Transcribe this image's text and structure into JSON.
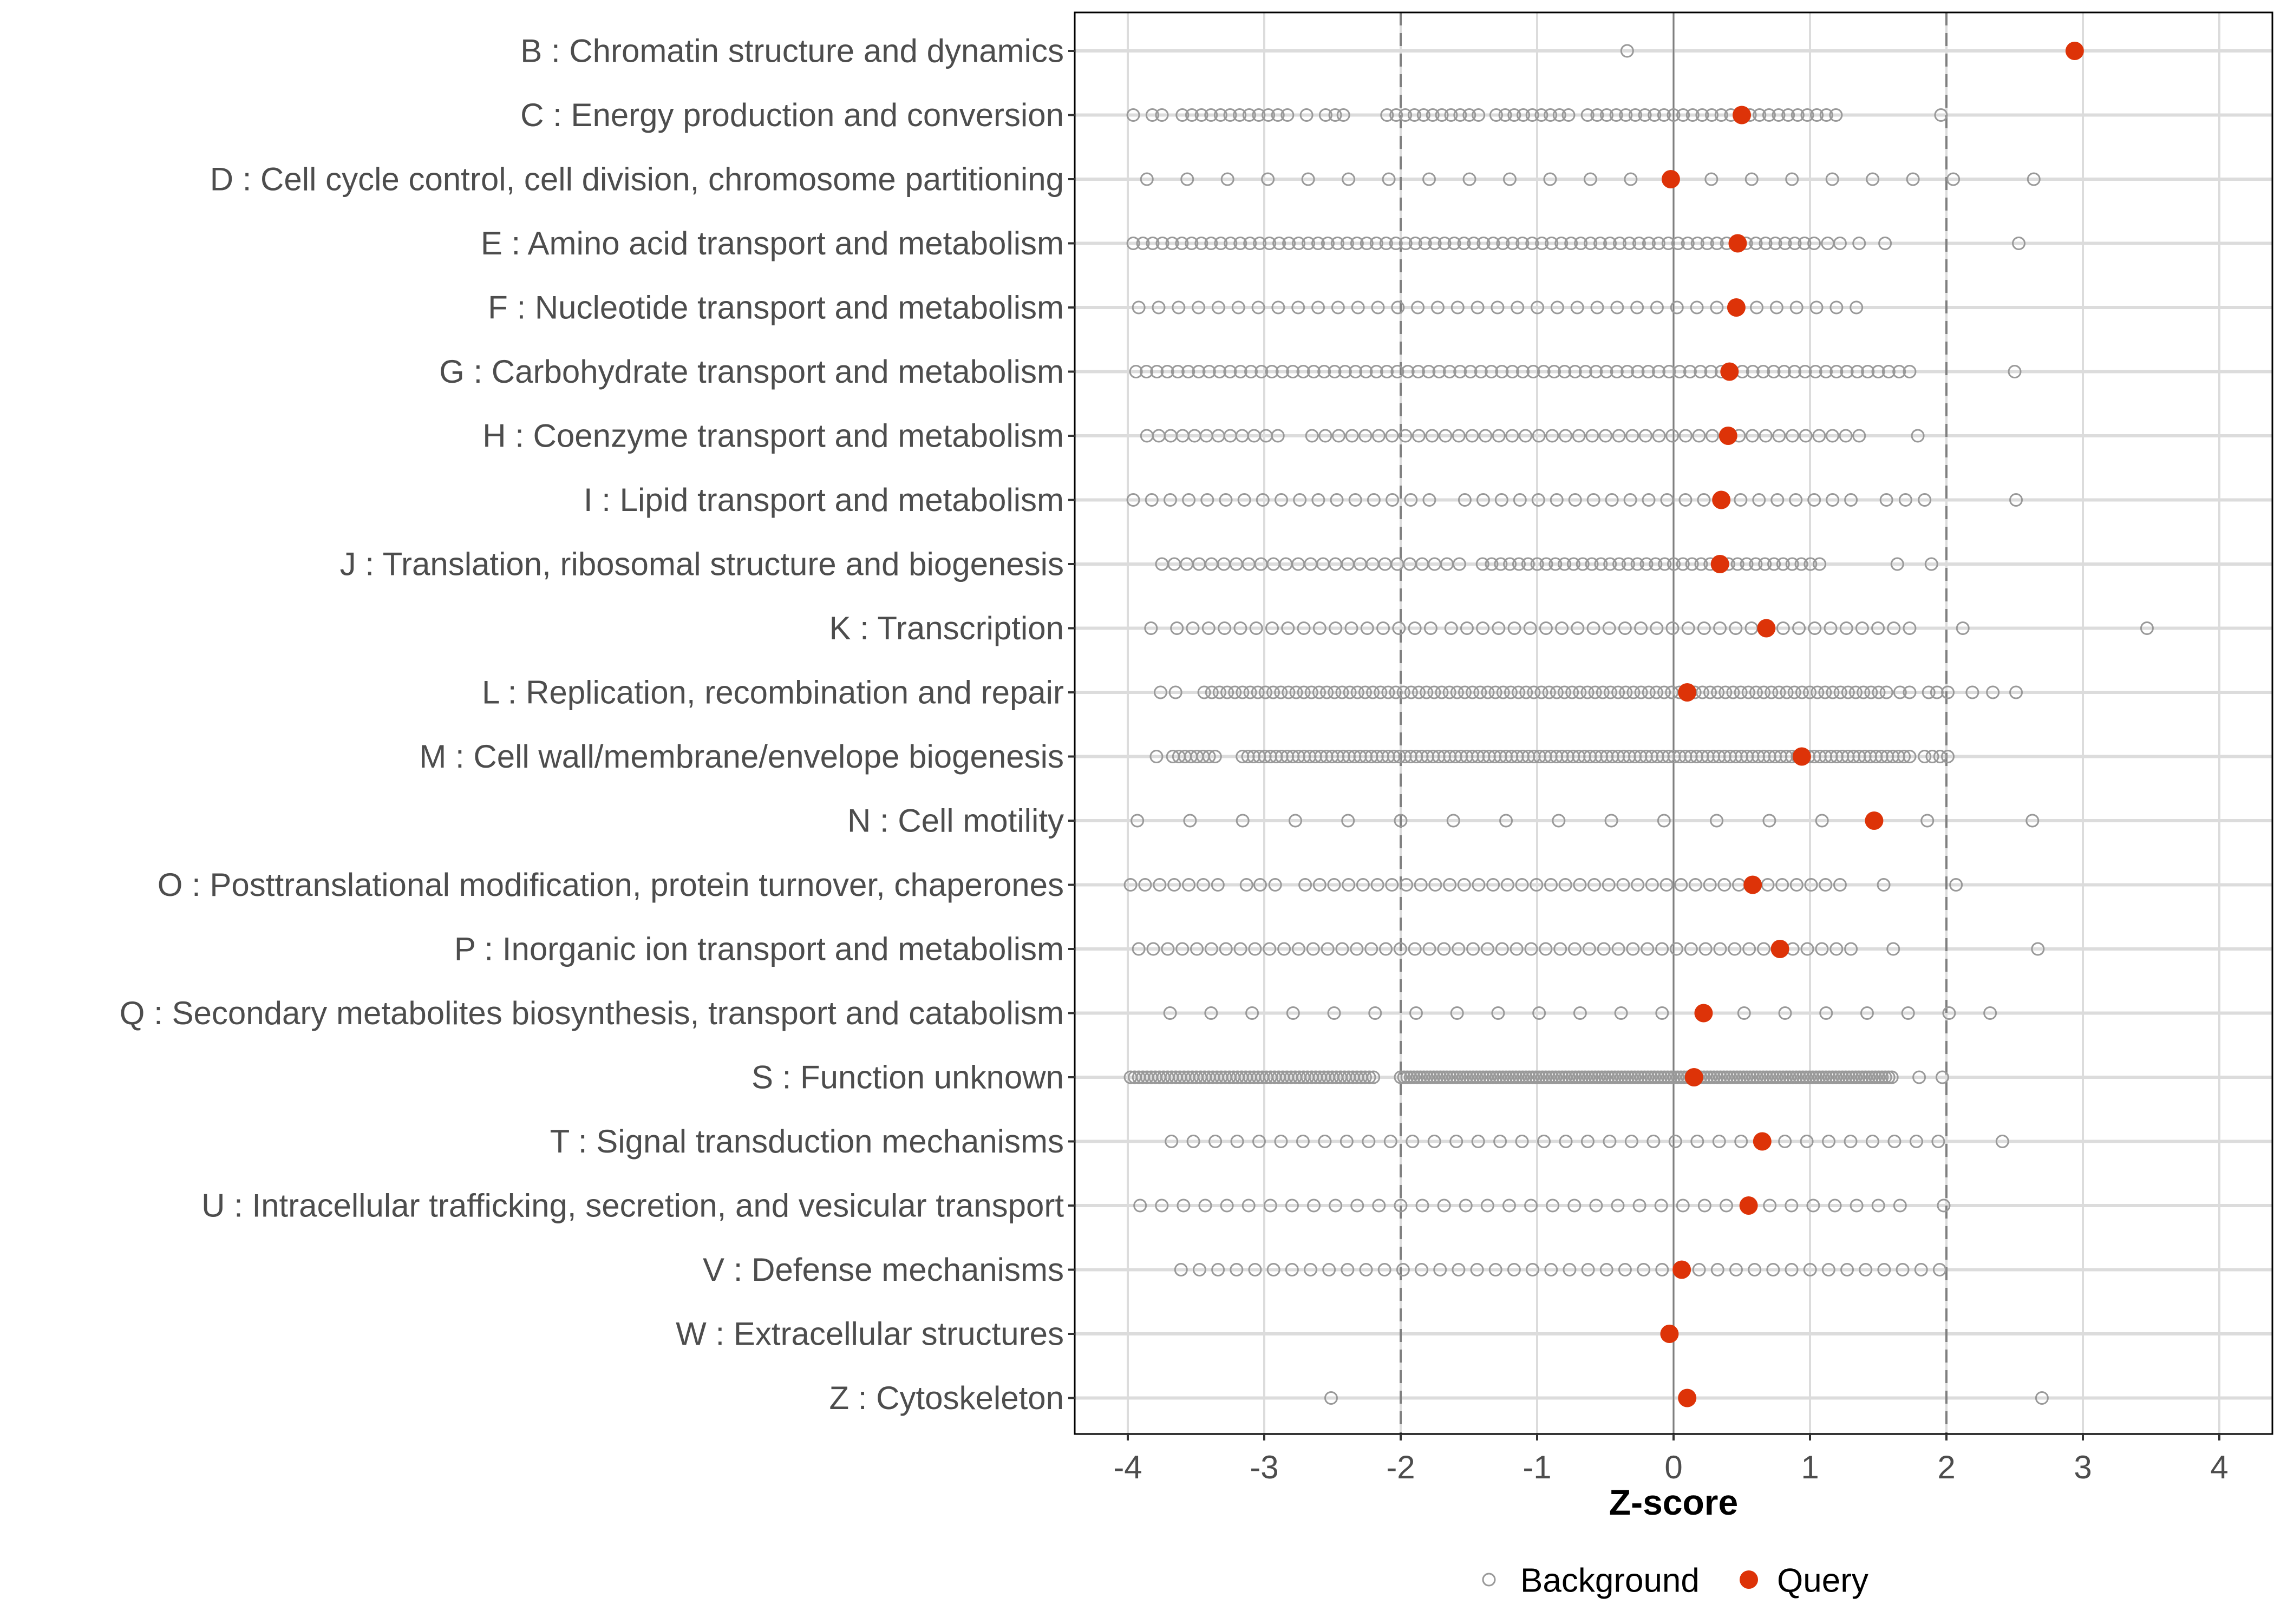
{
  "colors": {
    "background": "#999999",
    "query": "#dd3308",
    "grid": "#dcdcdc",
    "refline": "#7f7f7f"
  },
  "chart_data": {
    "type": "scatter",
    "xlabel": "Z-score",
    "xlim": [
      -4.4,
      4.4
    ],
    "xticks": [
      -4,
      -3,
      -2,
      -1,
      0,
      1,
      2,
      3,
      4
    ],
    "xtick_labels": [
      "-4",
      "-3",
      "-2",
      "-1",
      "0",
      "1",
      "2",
      "3",
      "4"
    ],
    "reference_lines": {
      "solid": [
        0
      ],
      "dashed": [
        -2,
        2
      ]
    },
    "grid": true,
    "legend": {
      "placement": "bottom",
      "entries": [
        "Background",
        "Query"
      ]
    },
    "background_note": "background entries: numbers or [from, to, count] evenly spaced runs",
    "categories": [
      {
        "label": "B : Chromatin structure and dynamics",
        "query": 2.94,
        "background": [
          -0.34
        ]
      },
      {
        "label": "C : Energy production and conversion",
        "query": 0.5,
        "background": [
          -3.96,
          -3.82,
          -3.75,
          [
            -3.6,
            -2.83,
            12
          ],
          -2.69,
          -2.55,
          -2.48,
          -2.42,
          [
            -2.1,
            -1.43,
            11
          ],
          [
            -1.3,
            -0.77,
            9
          ],
          [
            -0.63,
            1.19,
            27
          ],
          1.96
        ]
      },
      {
        "label": "D : Cell cycle control, cell division, chromosome partitioning",
        "query": -0.02,
        "background": [
          [
            -3.86,
            2.05,
            21
          ],
          2.64
        ]
      },
      {
        "label": "E : Amino acid transport and metabolism",
        "query": 0.47,
        "background": [
          [
            -3.96,
            0.96,
            70
          ],
          1.03,
          1.13,
          1.22,
          1.36,
          1.55,
          2.53
        ]
      },
      {
        "label": "F : Nucleotide transport and metabolism",
        "query": 0.46,
        "background": [
          [
            -3.92,
            1.34,
            37
          ]
        ]
      },
      {
        "label": "G : Carbohydrate transport and metabolism",
        "query": 0.41,
        "background": [
          [
            -3.94,
            1.73,
            75
          ],
          2.5
        ]
      },
      {
        "label": "H : Coenzyme transport and metabolism",
        "query": 0.4,
        "background": [
          [
            -3.86,
            -2.9,
            12
          ],
          [
            -2.65,
            1.36,
            42
          ],
          1.79
        ]
      },
      {
        "label": "I : Lipid transport and metabolism",
        "query": 0.35,
        "background": [
          [
            -3.96,
            -1.79,
            17
          ],
          [
            -1.53,
            1.3,
            22
          ],
          1.56,
          1.7,
          1.84,
          2.51
        ]
      },
      {
        "label": "J : Translation, ribosomal structure and biogenesis",
        "query": 0.34,
        "background": [
          [
            -3.75,
            -1.57,
            25
          ],
          [
            -1.4,
            1.07,
            38
          ],
          1.64,
          1.89
        ]
      },
      {
        "label": "K : Transcription",
        "query": 0.68,
        "background": [
          -3.83,
          [
            -3.64,
            -1.78,
            17
          ],
          [
            -1.63,
            1.73,
            30
          ],
          2.12,
          3.47
        ]
      },
      {
        "label": "L : Replication, recombination and repair",
        "query": 0.1,
        "background": [
          -3.76,
          -3.65,
          [
            -3.44,
            1.56,
            90
          ],
          1.66,
          1.73,
          1.87,
          1.93,
          2.01,
          2.19,
          2.34,
          2.51
        ]
      },
      {
        "label": "M : Cell wall/membrane/envelope biogenesis",
        "query": 0.94,
        "background": [
          -3.79,
          [
            -3.67,
            -3.36,
            8
          ],
          [
            -3.16,
            1.73,
            120
          ],
          [
            1.84,
            2.01,
            4
          ]
        ]
      },
      {
        "label": "N : Cell motility",
        "query": 1.47,
        "background": [
          [
            -3.93,
            1.86,
            16
          ],
          2.63
        ]
      },
      {
        "label": "O : Posttranslational modification, protein turnover, chaperones",
        "query": 0.58,
        "background": [
          [
            -3.98,
            -3.34,
            7
          ],
          -3.13,
          -3.03,
          -2.92,
          [
            -2.7,
            1.22,
            38
          ],
          1.54,
          2.07
        ]
      },
      {
        "label": "P : Inorganic ion transport and metabolism",
        "query": 0.78,
        "background": [
          [
            -3.92,
            1.3,
            50
          ],
          1.61,
          2.67
        ]
      },
      {
        "label": "Q : Secondary metabolites biosynthesis, transport and catabolism",
        "query": 0.22,
        "background": [
          [
            -3.69,
            2.32,
            21
          ]
        ]
      },
      {
        "label": "S : Function unknown",
        "query": 0.15,
        "background": [
          [
            -3.98,
            -2.2,
            60
          ],
          [
            -2.0,
            1.6,
            150
          ],
          1.8,
          1.97
        ]
      },
      {
        "label": "T : Signal transduction mechanisms",
        "query": 0.65,
        "background": [
          [
            -3.68,
            1.94,
            36
          ],
          2.41
        ]
      },
      {
        "label": "U : Intracellular trafficking, secretion, and vesicular transport",
        "query": 0.55,
        "background": [
          [
            -3.91,
            1.66,
            36
          ],
          1.98
        ]
      },
      {
        "label": "V : Defense mechanisms",
        "query": 0.06,
        "background": [
          [
            -3.61,
            1.95,
            42
          ]
        ]
      },
      {
        "label": "W : Extracellular structures",
        "query": -0.03,
        "background": []
      },
      {
        "label": "Z : Cytoskeleton",
        "query": 0.1,
        "background": [
          -2.51,
          2.7
        ]
      }
    ]
  }
}
